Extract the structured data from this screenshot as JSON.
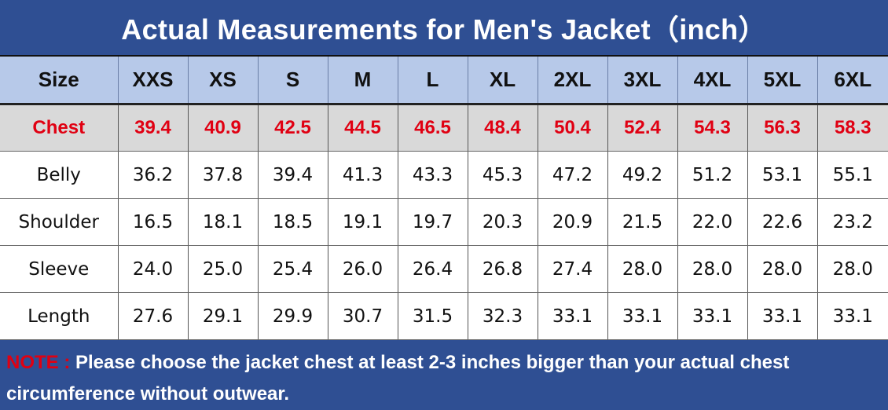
{
  "title": "Actual Measurements for Men's Jacket（inch）",
  "header": {
    "label": "Size",
    "sizes": [
      "XXS",
      "XS",
      "S",
      "M",
      "L",
      "XL",
      "2XL",
      "3XL",
      "4XL",
      "5XL",
      "6XL"
    ]
  },
  "rows": [
    {
      "label": "Chest",
      "values": [
        "39.4",
        "40.9",
        "42.5",
        "44.5",
        "46.5",
        "48.4",
        "50.4",
        "52.4",
        "54.3",
        "56.3",
        "58.3"
      ]
    },
    {
      "label": "Belly",
      "values": [
        "36.2",
        "37.8",
        "39.4",
        "41.3",
        "43.3",
        "45.3",
        "47.2",
        "49.2",
        "51.2",
        "53.1",
        "55.1"
      ]
    },
    {
      "label": "Shoulder",
      "values": [
        "16.5",
        "18.1",
        "18.5",
        "19.1",
        "19.7",
        "20.3",
        "20.9",
        "21.5",
        "22.0",
        "22.6",
        "23.2"
      ]
    },
    {
      "label": "Sleeve",
      "values": [
        "24.0",
        "25.0",
        "25.4",
        "26.0",
        "26.4",
        "26.8",
        "27.4",
        "28.0",
        "28.0",
        "28.0",
        "28.0"
      ]
    },
    {
      "label": "Length",
      "values": [
        "27.6",
        "29.1",
        "29.9",
        "30.7",
        "31.5",
        "32.3",
        "33.1",
        "33.1",
        "33.1",
        "33.1",
        "33.1"
      ]
    }
  ],
  "note": {
    "label": "NOTE :",
    "text": " Please choose the jacket chest at least 2-3 inches bigger than your actual chest circumference without outwear."
  },
  "colors": {
    "title_bar": "#2f4f93",
    "header_row": "#b7c9e9",
    "chest_row": "#d9d9d9",
    "highlight_text": "#e00012"
  }
}
